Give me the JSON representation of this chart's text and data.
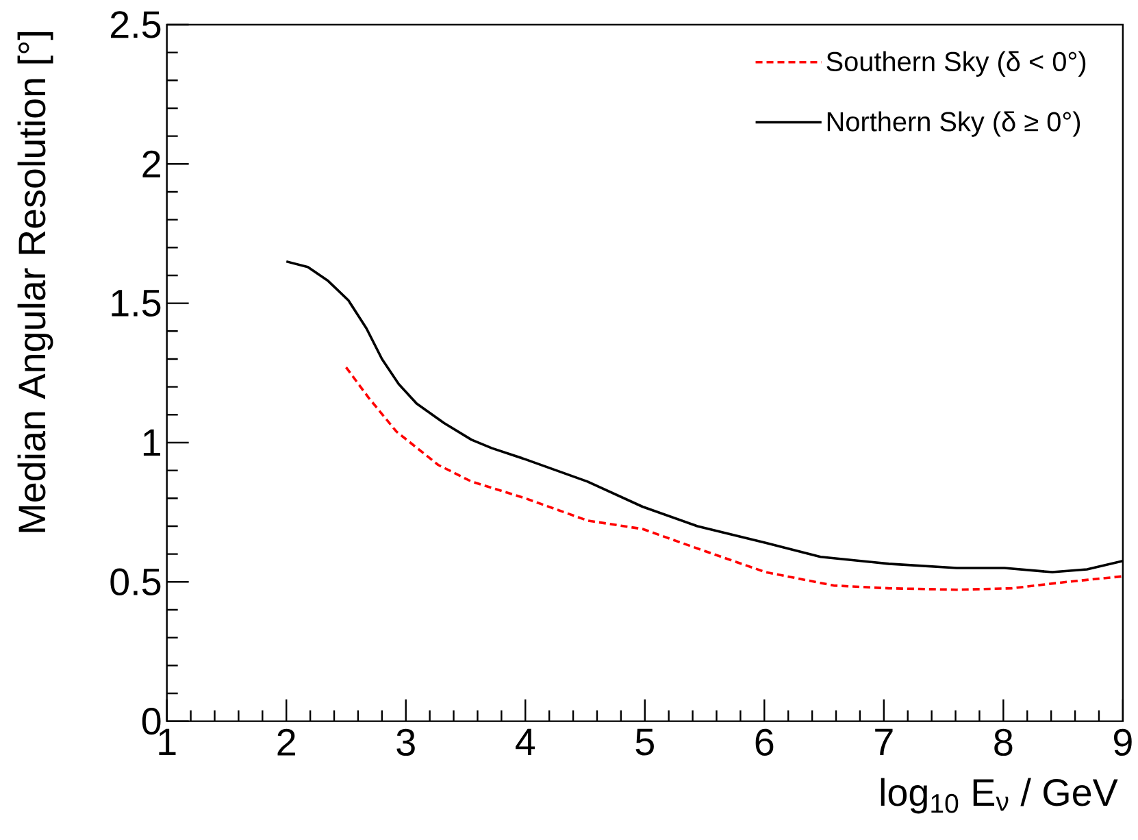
{
  "chart_data": {
    "type": "line",
    "xlabel": "log$_{10}$ E$_{ν}$ / GeV",
    "ylabel": "Median Angular Resolution [°]",
    "xlim": [
      1,
      9
    ],
    "ylim": [
      0,
      2.5
    ],
    "xticks": [
      1,
      2,
      3,
      4,
      5,
      6,
      7,
      8,
      9
    ],
    "yticks": [
      0,
      0.5,
      1,
      1.5,
      2,
      2.5
    ],
    "legend": "top right",
    "series": [
      {
        "name": "Southern Sky (δ < 0°)",
        "color": "#ff0000",
        "line_style": "dashed",
        "x": [
          2.5,
          2.69,
          2.92,
          3.27,
          3.55,
          4.0,
          4.52,
          4.98,
          5.44,
          6.01,
          6.58,
          7.04,
          7.61,
          8.07,
          8.53,
          9.0
        ],
        "values": [
          1.27,
          1.16,
          1.04,
          0.92,
          0.86,
          0.8,
          0.72,
          0.69,
          0.62,
          0.535,
          0.487,
          0.477,
          0.472,
          0.477,
          0.5,
          0.52
        ]
      },
      {
        "name": "Northern Sky (δ ≥ 0°)",
        "color": "#000000",
        "line_style": "solid",
        "x": [
          2.0,
          2.18,
          2.35,
          2.52,
          2.67,
          2.8,
          2.94,
          3.09,
          3.32,
          3.55,
          3.72,
          4.0,
          4.52,
          4.98,
          5.44,
          6.01,
          6.47,
          7.04,
          7.61,
          8.01,
          8.41,
          8.7,
          9.0
        ],
        "values": [
          1.65,
          1.63,
          1.58,
          1.51,
          1.41,
          1.3,
          1.21,
          1.14,
          1.07,
          1.01,
          0.98,
          0.94,
          0.86,
          0.77,
          0.7,
          0.64,
          0.59,
          0.565,
          0.55,
          0.55,
          0.535,
          0.545,
          0.575
        ]
      }
    ]
  }
}
